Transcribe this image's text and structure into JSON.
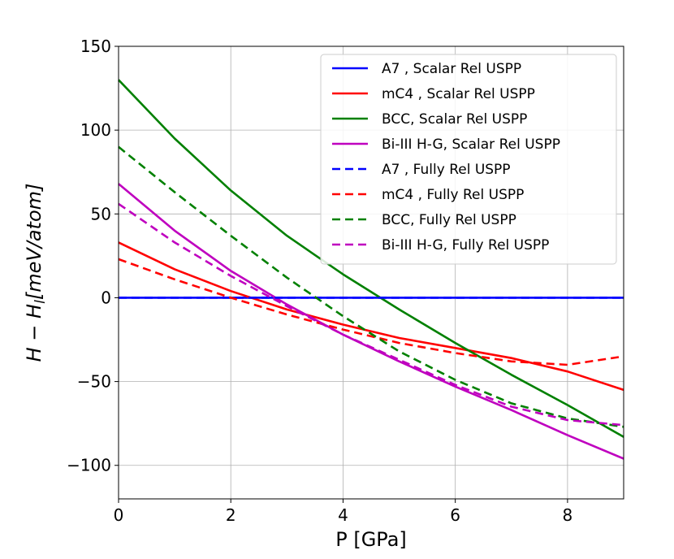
{
  "chart_data": {
    "type": "line",
    "title": "",
    "xlabel": "P [GPa]",
    "ylabel": "H − H_l[meV/atom]",
    "ylabel_main": "H − H",
    "ylabel_sub": "l",
    "ylabel_rest": "[meV/atom]",
    "xlim": [
      0,
      9
    ],
    "ylim": [
      -120,
      150
    ],
    "xticks": [
      0,
      2,
      4,
      6,
      8
    ],
    "xtick_labels": [
      "0",
      "2",
      "4",
      "6",
      "8"
    ],
    "yticks": [
      -100,
      -50,
      0,
      50,
      100,
      150
    ],
    "ytick_labels": [
      "−100",
      "−50",
      "0",
      "50",
      "100",
      "150"
    ],
    "grid": true,
    "legend_position": "top-right",
    "x": [
      0,
      1,
      2,
      3,
      4,
      5,
      6,
      7,
      8,
      9
    ],
    "series": [
      {
        "name": "A7 , Scalar Rel USPP",
        "color": "#0000ff",
        "dash": "solid",
        "values": [
          0,
          0,
          0,
          0,
          0,
          0,
          0,
          0,
          0,
          0
        ]
      },
      {
        "name": "mC4 , Scalar Rel USPP",
        "color": "#ff0000",
        "dash": "solid",
        "values": [
          33,
          17,
          4,
          -7,
          -16,
          -24,
          -30,
          -36,
          -44,
          -55
        ]
      },
      {
        "name": "BCC, Scalar Rel USPP",
        "color": "#008000",
        "dash": "solid",
        "values": [
          130,
          95,
          64,
          37,
          14,
          -7,
          -27,
          -46,
          -64,
          -83
        ]
      },
      {
        "name": "Bi-III H-G, Scalar Rel USPP",
        "color": "#bf00bf",
        "dash": "solid",
        "values": [
          68,
          40,
          16,
          -4,
          -22,
          -38,
          -53,
          -67,
          -82,
          -96
        ]
      },
      {
        "name": "A7 , Fully Rel USPP",
        "color": "#0000ff",
        "dash": "dashed",
        "values": [
          0,
          0,
          0,
          0,
          0,
          0,
          0,
          0,
          0,
          0
        ]
      },
      {
        "name": "mC4 , Fully Rel USPP",
        "color": "#ff0000",
        "dash": "dashed",
        "values": [
          23,
          11,
          0,
          -10,
          -19,
          -27,
          -33,
          -38,
          -40,
          -35
        ]
      },
      {
        "name": "BCC, Fully Rel USPP",
        "color": "#008000",
        "dash": "dashed",
        "values": [
          90,
          63,
          37,
          12,
          -11,
          -32,
          -49,
          -63,
          -72,
          -77
        ]
      },
      {
        "name": "Bi-III H-G, Fully Rel USPP",
        "color": "#bf00bf",
        "dash": "dashed",
        "values": [
          56,
          33,
          13,
          -5,
          -22,
          -37,
          -52,
          -65,
          -73,
          -76
        ]
      }
    ]
  }
}
